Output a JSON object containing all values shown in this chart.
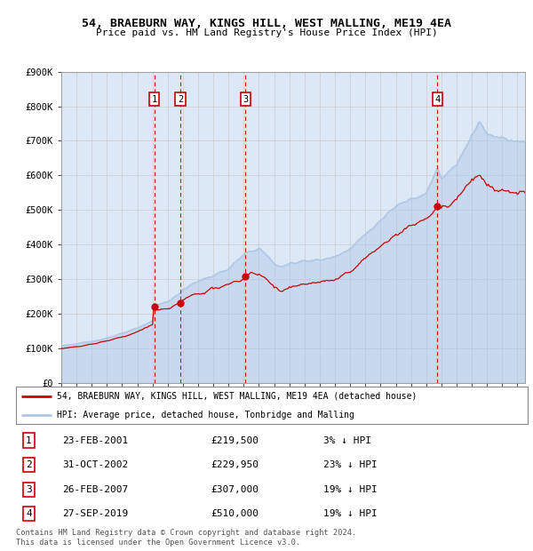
{
  "title": "54, BRAEBURN WAY, KINGS HILL, WEST MALLING, ME19 4EA",
  "subtitle": "Price paid vs. HM Land Registry's House Price Index (HPI)",
  "ylim": [
    0,
    900000
  ],
  "yticks": [
    0,
    100000,
    200000,
    300000,
    400000,
    500000,
    600000,
    700000,
    800000,
    900000
  ],
  "ytick_labels": [
    "£0",
    "£100K",
    "£200K",
    "£300K",
    "£400K",
    "£500K",
    "£600K",
    "£700K",
    "£800K",
    "£900K"
  ],
  "hpi_color": "#aec6e8",
  "price_color": "#cc0000",
  "vline_color": "#cc0000",
  "bg_color": "#dce8f5",
  "plot_bg": "#ffffff",
  "grid_color": "#cccccc",
  "transactions": [
    {
      "num": 1,
      "date_num": 2001.12,
      "price": 219500,
      "label": "1",
      "date_str": "23-FEB-2001",
      "price_str": "£219,500",
      "hpi_str": "3% ↓ HPI"
    },
    {
      "num": 2,
      "date_num": 2002.83,
      "price": 229950,
      "label": "2",
      "date_str": "31-OCT-2002",
      "price_str": "£229,950",
      "hpi_str": "23% ↓ HPI"
    },
    {
      "num": 3,
      "date_num": 2007.12,
      "price": 307000,
      "label": "3",
      "date_str": "26-FEB-2007",
      "price_str": "£307,000",
      "hpi_str": "19% ↓ HPI"
    },
    {
      "num": 4,
      "date_num": 2019.73,
      "price": 510000,
      "label": "4",
      "date_str": "27-SEP-2019",
      "price_str": "£510,000",
      "hpi_str": "19% ↓ HPI"
    }
  ],
  "legend_red_label": "54, BRAEBURN WAY, KINGS HILL, WEST MALLING, ME19 4EA (detached house)",
  "legend_blue_label": "HPI: Average price, detached house, Tonbridge and Malling",
  "footnote": "Contains HM Land Registry data © Crown copyright and database right 2024.\nThis data is licensed under the Open Government Licence v3.0.",
  "xmin": 1995.0,
  "xmax": 2025.5,
  "hpi_waypoints": [
    [
      1995.0,
      108000
    ],
    [
      1996.0,
      113000
    ],
    [
      1997.0,
      120000
    ],
    [
      1998.0,
      130000
    ],
    [
      1999.0,
      143000
    ],
    [
      2000.0,
      158000
    ],
    [
      2001.0,
      180000
    ],
    [
      2001.12,
      225000
    ],
    [
      2002.0,
      235000
    ],
    [
      2002.83,
      260000
    ],
    [
      2003.0,
      270000
    ],
    [
      2004.0,
      295000
    ],
    [
      2005.0,
      310000
    ],
    [
      2006.0,
      330000
    ],
    [
      2007.0,
      370000
    ],
    [
      2007.12,
      375000
    ],
    [
      2008.0,
      390000
    ],
    [
      2008.5,
      370000
    ],
    [
      2009.0,
      345000
    ],
    [
      2009.5,
      335000
    ],
    [
      2010.0,
      345000
    ],
    [
      2011.0,
      355000
    ],
    [
      2012.0,
      355000
    ],
    [
      2013.0,
      365000
    ],
    [
      2014.0,
      390000
    ],
    [
      2015.0,
      430000
    ],
    [
      2016.0,
      470000
    ],
    [
      2017.0,
      510000
    ],
    [
      2018.0,
      535000
    ],
    [
      2019.0,
      550000
    ],
    [
      2019.73,
      620000
    ],
    [
      2020.0,
      590000
    ],
    [
      2021.0,
      630000
    ],
    [
      2022.0,
      720000
    ],
    [
      2022.5,
      755000
    ],
    [
      2023.0,
      720000
    ],
    [
      2024.0,
      710000
    ],
    [
      2025.0,
      700000
    ],
    [
      2025.5,
      695000
    ]
  ],
  "price_waypoints": [
    [
      1995.0,
      100000
    ],
    [
      1996.0,
      105000
    ],
    [
      1997.0,
      112000
    ],
    [
      1998.0,
      122000
    ],
    [
      1999.0,
      133000
    ],
    [
      2000.0,
      148000
    ],
    [
      2001.0,
      168000
    ],
    [
      2001.12,
      219500
    ],
    [
      2001.2,
      210000
    ],
    [
      2002.0,
      215000
    ],
    [
      2002.83,
      229950
    ],
    [
      2003.0,
      240000
    ],
    [
      2004.0,
      258000
    ],
    [
      2005.0,
      272000
    ],
    [
      2006.0,
      285000
    ],
    [
      2007.0,
      300000
    ],
    [
      2007.12,
      307000
    ],
    [
      2007.5,
      320000
    ],
    [
      2008.0,
      315000
    ],
    [
      2008.5,
      300000
    ],
    [
      2009.0,
      275000
    ],
    [
      2009.5,
      265000
    ],
    [
      2010.0,
      278000
    ],
    [
      2011.0,
      285000
    ],
    [
      2012.0,
      290000
    ],
    [
      2013.0,
      298000
    ],
    [
      2014.0,
      320000
    ],
    [
      2015.0,
      360000
    ],
    [
      2016.0,
      395000
    ],
    [
      2017.0,
      430000
    ],
    [
      2018.0,
      455000
    ],
    [
      2019.0,
      475000
    ],
    [
      2019.73,
      510000
    ],
    [
      2020.0,
      505000
    ],
    [
      2020.5,
      510000
    ],
    [
      2021.0,
      530000
    ],
    [
      2021.5,
      560000
    ],
    [
      2022.0,
      590000
    ],
    [
      2022.5,
      600000
    ],
    [
      2023.0,
      570000
    ],
    [
      2023.5,
      555000
    ],
    [
      2024.0,
      560000
    ],
    [
      2024.5,
      550000
    ],
    [
      2025.0,
      545000
    ],
    [
      2025.5,
      550000
    ]
  ]
}
